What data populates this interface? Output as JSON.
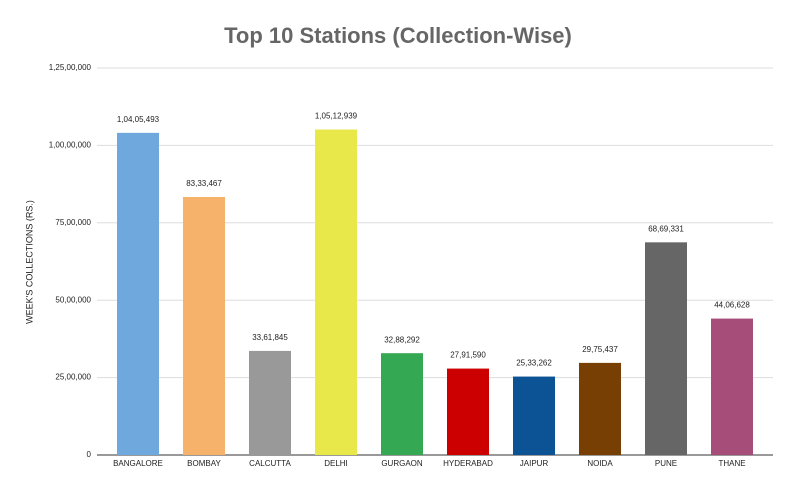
{
  "chart_data": {
    "type": "bar",
    "title": "Top 10 Stations (Collection-Wise)",
    "y_label": "WEEK'S COLLECTIONS (RS.)",
    "categories": [
      "BANGALORE",
      "BOMBAY",
      "CALCUTTA",
      "DELHI",
      "GURGAON",
      "HYDERABAD",
      "JAIPUR",
      "NOIDA",
      "PUNE",
      "THANE"
    ],
    "values": [
      10405493,
      8333467,
      3361845,
      10512939,
      3288292,
      2791590,
      2533262,
      2975437,
      6869331,
      4406628
    ],
    "value_labels": [
      "1,04,05,493",
      "83,33,467",
      "33,61,845",
      "1,05,12,939",
      "32,88,292",
      "27,91,590",
      "25,33,262",
      "29,75,437",
      "68,69,331",
      "44,06,628"
    ],
    "colors": [
      "#6fa8dc",
      "#f6b26b",
      "#999999",
      "#e9e84a",
      "#34a853",
      "#cc0000",
      "#0b5394",
      "#783f04",
      "#666666",
      "#a64d79"
    ],
    "ylim": [
      0,
      12500000
    ],
    "yticks": [
      0,
      {
        "value": 2500000,
        "label": "25,00,000"
      },
      {
        "value": 5000000,
        "label": "50,00,000"
      },
      {
        "value": 7500000,
        "label": "75,00,000"
      },
      {
        "value": 10000000,
        "label": "1,00,00,000"
      },
      {
        "value": 12500000,
        "label": "1,25,00,000"
      }
    ],
    "grid": true
  }
}
